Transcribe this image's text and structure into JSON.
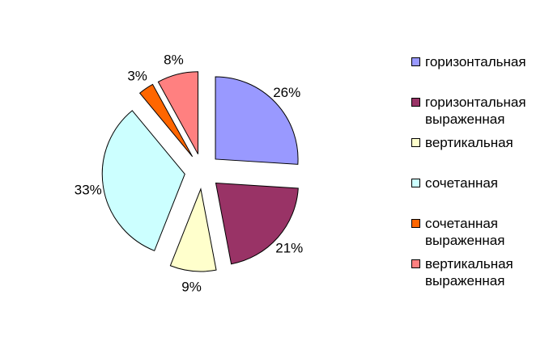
{
  "chart_data": {
    "type": "pie",
    "title": "",
    "start_angle_deg": 0,
    "direction": "clockwise",
    "exploded": true,
    "slices": [
      {
        "label": "горизонтальная",
        "value": 26,
        "value_label": "26%",
        "color": "#9999ff"
      },
      {
        "label": "горизонтальная\nвыраженная",
        "value": 21,
        "value_label": "21%",
        "color": "#993366"
      },
      {
        "label": "вертикальная",
        "value": 9,
        "value_label": "9%",
        "color": "#ffffcc"
      },
      {
        "label": "сочетанная",
        "value": 33,
        "value_label": "33%",
        "color": "#ccffff"
      },
      {
        "label": "сочетанная\nвыраженная",
        "value": 3,
        "value_label": "3%",
        "color": "#ff6600"
      },
      {
        "label": "вертикальная\nвыраженная",
        "value": 8,
        "value_label": "8%",
        "color": "#ff8080"
      }
    ],
    "legend_position": "right"
  }
}
